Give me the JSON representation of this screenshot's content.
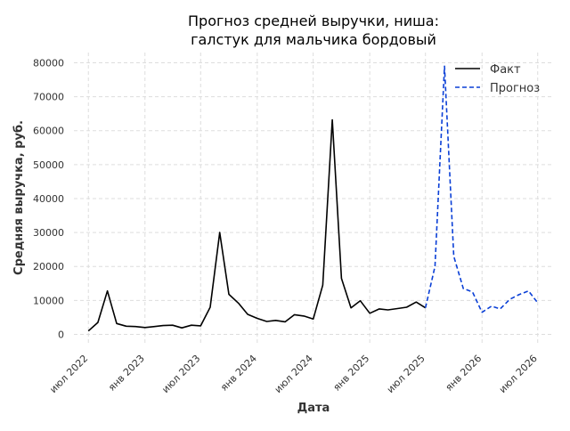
{
  "chart_data": {
    "type": "line",
    "title_lines": [
      "Прогноз средней выручки, ниша:",
      "галстук для мальчика бордовый"
    ],
    "xlabel": "Дата",
    "ylabel": "Средняя выручка, руб.",
    "ylim": [
      -2500,
      83000
    ],
    "yticks": [
      0,
      10000,
      20000,
      30000,
      40000,
      50000,
      60000,
      70000,
      80000
    ],
    "ytick_labels": [
      "0",
      "10000",
      "20000",
      "30000",
      "40000",
      "50000",
      "60000",
      "70000",
      "80000"
    ],
    "xlim": [
      "2022-05-15",
      "2026-08-20"
    ],
    "xticks": [
      "2022-07-01",
      "2023-01-01",
      "2023-07-01",
      "2024-01-01",
      "2024-07-01",
      "2025-01-01",
      "2025-07-01",
      "2026-01-01",
      "2026-07-01"
    ],
    "xtick_labels": [
      "июл 2022",
      "янв 2023",
      "июл 2023",
      "янв 2024",
      "июл 2024",
      "янв 2025",
      "июл 2025",
      "янв 2026",
      "июл 2026"
    ],
    "grid": true,
    "legend_position": "top-right",
    "series": [
      {
        "name": "Факт",
        "color": "#000000",
        "dash": "solid",
        "points": [
          [
            "2022-07-01",
            1000
          ],
          [
            "2022-08-01",
            3500
          ],
          [
            "2022-09-01",
            12800
          ],
          [
            "2022-10-01",
            3200
          ],
          [
            "2022-11-01",
            2400
          ],
          [
            "2022-12-01",
            2300
          ],
          [
            "2023-01-01",
            2000
          ],
          [
            "2023-02-01",
            2300
          ],
          [
            "2023-03-01",
            2600
          ],
          [
            "2023-04-01",
            2700
          ],
          [
            "2023-05-01",
            1900
          ],
          [
            "2023-06-01",
            2700
          ],
          [
            "2023-07-01",
            2500
          ],
          [
            "2023-08-01",
            8000
          ],
          [
            "2023-09-01",
            30000
          ],
          [
            "2023-10-01",
            11800
          ],
          [
            "2023-11-01",
            9200
          ],
          [
            "2023-12-01",
            5900
          ],
          [
            "2024-01-01",
            4700
          ],
          [
            "2024-02-01",
            3800
          ],
          [
            "2024-03-01",
            4100
          ],
          [
            "2024-04-01",
            3700
          ],
          [
            "2024-05-01",
            5800
          ],
          [
            "2024-06-01",
            5400
          ],
          [
            "2024-07-01",
            4500
          ],
          [
            "2024-08-01",
            14500
          ],
          [
            "2024-09-01",
            63200
          ],
          [
            "2024-10-01",
            16500
          ],
          [
            "2024-11-01",
            7800
          ],
          [
            "2024-12-01",
            9900
          ],
          [
            "2025-01-01",
            6200
          ],
          [
            "2025-02-01",
            7500
          ],
          [
            "2025-03-01",
            7200
          ],
          [
            "2025-04-01",
            7600
          ],
          [
            "2025-05-01",
            8000
          ],
          [
            "2025-06-01",
            9500
          ],
          [
            "2025-07-01",
            7800
          ]
        ]
      },
      {
        "name": "Прогноз",
        "color": "#0a3fd6",
        "dash": "dashed",
        "points": [
          [
            "2025-07-01",
            7800
          ],
          [
            "2025-08-01",
            20000
          ],
          [
            "2025-09-01",
            79000
          ],
          [
            "2025-10-01",
            23000
          ],
          [
            "2025-11-01",
            13500
          ],
          [
            "2025-12-01",
            12500
          ],
          [
            "2026-01-01",
            6500
          ],
          [
            "2026-02-01",
            8300
          ],
          [
            "2026-03-01",
            7500
          ],
          [
            "2026-04-01",
            10300
          ],
          [
            "2026-05-01",
            11700
          ],
          [
            "2026-06-01",
            12800
          ],
          [
            "2026-07-01",
            9300
          ]
        ]
      }
    ]
  }
}
